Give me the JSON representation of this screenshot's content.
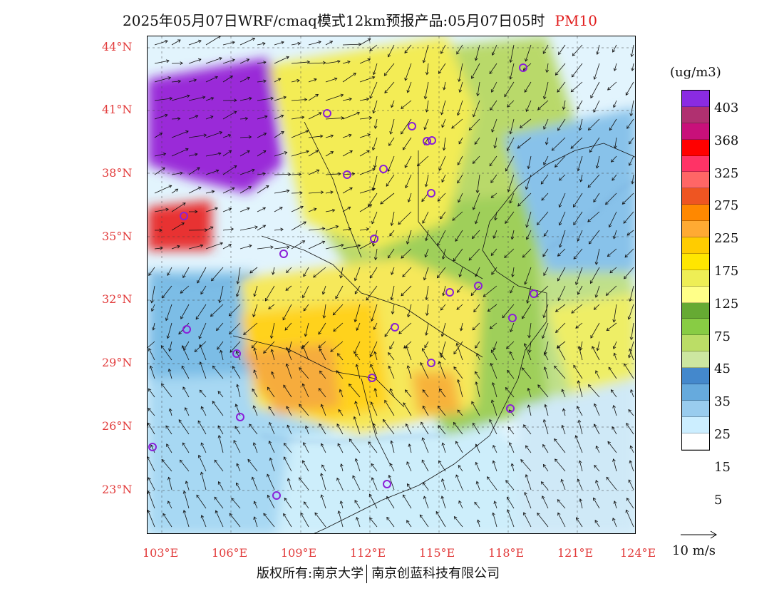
{
  "title": {
    "main": "2025年05月07日WRF/cmaq模式12km预报产品:05月07日05时",
    "pollutant": "PM10"
  },
  "latitudes": [
    "44°N",
    "41°N",
    "38°N",
    "35°N",
    "32°N",
    "29°N",
    "26°N",
    "23°N"
  ],
  "longitudes": [
    "103°E",
    "106°E",
    "109°E",
    "112°E",
    "115°E",
    "118°E",
    "121°E",
    "124°E"
  ],
  "colorbar": {
    "unit": "(ug/m3)",
    "labels": [
      "403",
      "368",
      "325",
      "275",
      "225",
      "175",
      "125",
      "75",
      "45",
      "35",
      "25",
      "15",
      "5"
    ],
    "colors": [
      "#8a2be2",
      "#b03070",
      "#c8107a",
      "#ff0000",
      "#ff3366",
      "#ff6666",
      "#ee5522",
      "#ff8800",
      "#ffaa33",
      "#ffcc00",
      "#ffe600",
      "#eeee55",
      "#ffff88",
      "#66aa33",
      "#88cc44",
      "#bbdd66",
      "#cce6a0",
      "#4488cc",
      "#66aadd",
      "#99ccee",
      "#cceeff",
      "#ffffff"
    ]
  },
  "wind_reference": "10 m/s",
  "footer": {
    "left": "版权所有:南京大学",
    "right": "南京创蓝科技有限公司"
  }
}
